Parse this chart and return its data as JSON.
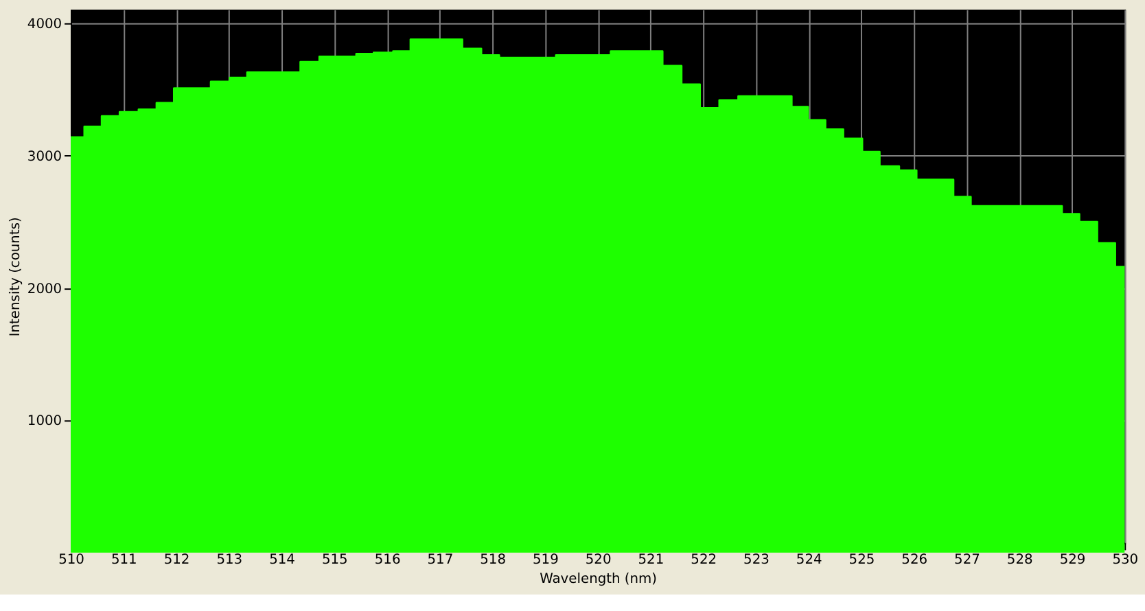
{
  "chart_data": {
    "type": "step",
    "xlabel": "Wavelength (nm)",
    "ylabel": "Intensity (counts)",
    "x": [
      510,
      510.26,
      510.59,
      510.93,
      511.29,
      511.63,
      511.96,
      512.66,
      513.02,
      513.35,
      514.36,
      514.72,
      515.42,
      515.75,
      516.12,
      516.45,
      517.43,
      517.79,
      518.13,
      518.46,
      519.21,
      520.25,
      521.23,
      521.59,
      521.94,
      522.31,
      522.67,
      523.68,
      523.99,
      524.32,
      524.66,
      525.02,
      525.35,
      525.72,
      526.05,
      526.75,
      527.08,
      527.83,
      528.81,
      529.14,
      529.48,
      529.82,
      530
    ],
    "series": [
      {
        "color": "#1eff00",
        "values": [
          3140,
          3220,
          3300,
          3330,
          3350,
          3400,
          3510,
          3560,
          3590,
          3630,
          3710,
          3750,
          3770,
          3780,
          3790,
          3880,
          3810,
          3760,
          3740,
          3740,
          3760,
          3790,
          3680,
          3540,
          3360,
          3420,
          3450,
          3370,
          3270,
          3200,
          3130,
          3030,
          2920,
          2890,
          2820,
          2690,
          2620,
          2620,
          2560,
          2500,
          2340,
          2160,
          2160
        ]
      }
    ],
    "xlim": [
      510,
      530
    ],
    "xticks": [
      510,
      511,
      512,
      513,
      514,
      515,
      516,
      517,
      518,
      519,
      520,
      521,
      522,
      523,
      524,
      525,
      526,
      527,
      528,
      529,
      530
    ],
    "ylim": [
      75,
      4105
    ],
    "yticks": [
      1000,
      2000,
      3000,
      4000
    ],
    "grid": true
  }
}
